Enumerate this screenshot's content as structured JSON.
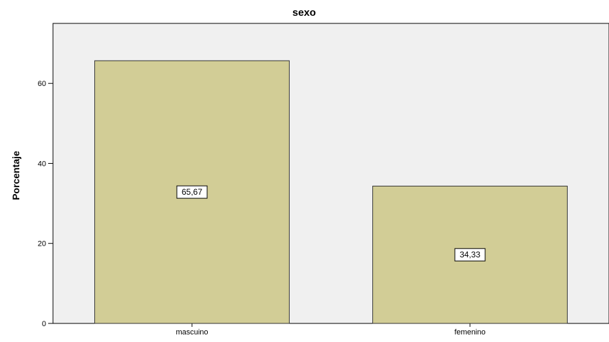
{
  "chart_data": {
    "type": "bar",
    "title": "sexo",
    "xlabel": "",
    "ylabel": "Porcentaje",
    "categories": [
      "mascuino",
      "femenino"
    ],
    "values": [
      65.67,
      34.33
    ],
    "value_labels": [
      "65,67",
      "34,33"
    ],
    "ylim": [
      0,
      75
    ],
    "yticks": [
      0,
      20,
      40,
      60
    ],
    "ytick_labels": [
      "0",
      "20",
      "40",
      "60"
    ],
    "grid": false,
    "legend": "none",
    "colors": {
      "bar_fill": "#d2cd96",
      "bar_stroke": "#333333",
      "plot_background": "#f0f0f0",
      "axis": "#000000"
    }
  }
}
